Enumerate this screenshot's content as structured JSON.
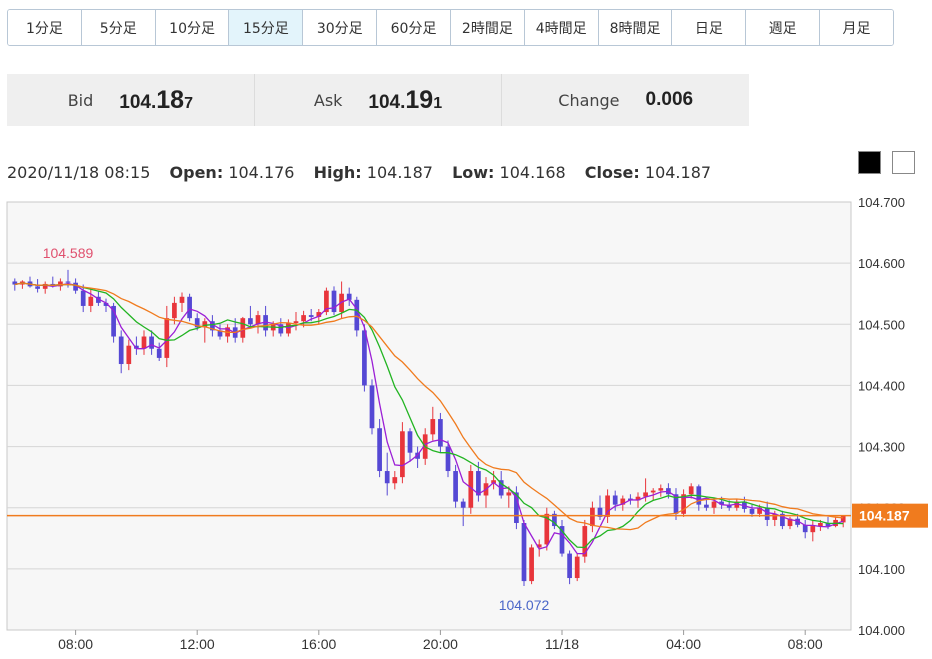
{
  "timeframes": [
    "1分足",
    "5分足",
    "10分足",
    "15分足",
    "30分足",
    "60分足",
    "2時間足",
    "4時間足",
    "8時間足",
    "日足",
    "週足",
    "月足"
  ],
  "active_timeframe": "15分足",
  "quote": {
    "bid_label": "Bid",
    "bid_main": "104.",
    "bid_big": "18",
    "bid_small": "7",
    "ask_label": "Ask",
    "ask_main": "104.",
    "ask_big": "19",
    "ask_small": "1",
    "change_label": "Change",
    "change_value": "0.006"
  },
  "ohlc": {
    "datetime": "2020/11/18 08:15",
    "open_label": "Open:",
    "open": "104.176",
    "high_label": "High:",
    "high": "104.187",
    "low_label": "Low:",
    "low": "104.168",
    "close_label": "Close:",
    "close": "104.187"
  },
  "colors": {
    "up": "#e8353b",
    "down": "#5548d4",
    "ma_fast": "#9b1fd6",
    "ma_mid": "#22b422",
    "ma_slow": "#f07b1e",
    "price_line": "#f07b1e",
    "high_label": "#e0506e",
    "low_label": "#4a66c8"
  },
  "chart_data": {
    "type": "candlestick",
    "ylim": [
      104.0,
      104.7
    ],
    "y_ticks": [
      "104.700",
      "104.600",
      "104.500",
      "104.400",
      "104.300",
      "104.200",
      "104.100",
      "104.000"
    ],
    "x_tick_labels": [
      "08:00",
      "12:00",
      "16:00",
      "20:00",
      "11/18",
      "04:00",
      "08:00"
    ],
    "x_tick_index": [
      8,
      24,
      40,
      56,
      72,
      88,
      104
    ],
    "current_price": "104.187",
    "high_annotation": "104.589",
    "high_annotation_index": 7,
    "low_annotation": "104.072",
    "low_annotation_index": 67,
    "candles": [
      [
        104.57,
        104.575,
        104.555,
        104.565
      ],
      [
        104.565,
        104.572,
        104.558,
        104.57
      ],
      [
        104.57,
        104.578,
        104.56,
        104.562
      ],
      [
        104.562,
        104.574,
        104.552,
        104.558
      ],
      [
        104.558,
        104.57,
        104.55,
        104.566
      ],
      [
        104.566,
        104.578,
        104.56,
        104.562
      ],
      [
        104.562,
        104.575,
        104.555,
        104.57
      ],
      [
        104.57,
        104.589,
        104.56,
        104.568
      ],
      [
        104.568,
        104.575,
        104.55,
        104.555
      ],
      [
        104.555,
        104.565,
        104.52,
        104.53
      ],
      [
        104.53,
        104.56,
        104.52,
        104.545
      ],
      [
        104.545,
        104.555,
        104.53,
        104.535
      ],
      [
        104.535,
        104.542,
        104.52,
        104.53
      ],
      [
        104.53,
        104.535,
        104.47,
        104.48
      ],
      [
        104.48,
        104.49,
        104.42,
        104.435
      ],
      [
        104.435,
        104.475,
        104.425,
        104.465
      ],
      [
        104.465,
        104.48,
        104.45,
        104.46
      ],
      [
        104.46,
        104.49,
        104.45,
        104.48
      ],
      [
        104.48,
        104.49,
        104.45,
        104.46
      ],
      [
        104.46,
        104.47,
        104.44,
        104.445
      ],
      [
        104.445,
        104.53,
        104.43,
        104.51
      ],
      [
        104.51,
        104.545,
        104.5,
        104.535
      ],
      [
        104.535,
        104.552,
        104.52,
        104.545
      ],
      [
        104.545,
        104.55,
        104.505,
        104.51
      ],
      [
        104.51,
        104.518,
        104.49,
        104.495
      ],
      [
        104.495,
        104.51,
        104.47,
        104.505
      ],
      [
        104.505,
        104.515,
        104.48,
        104.49
      ],
      [
        104.49,
        104.5,
        104.475,
        104.48
      ],
      [
        104.48,
        104.5,
        104.47,
        104.495
      ],
      [
        104.495,
        104.51,
        104.47,
        104.478
      ],
      [
        104.478,
        104.512,
        104.47,
        104.51
      ],
      [
        104.51,
        104.53,
        104.495,
        104.5
      ],
      [
        104.5,
        104.522,
        104.485,
        104.515
      ],
      [
        104.515,
        104.53,
        104.48,
        104.49
      ],
      [
        104.49,
        104.505,
        104.48,
        104.5
      ],
      [
        104.5,
        104.51,
        104.48,
        104.485
      ],
      [
        104.485,
        104.508,
        104.48,
        104.502
      ],
      [
        104.502,
        104.52,
        104.49,
        104.505
      ],
      [
        104.505,
        104.522,
        104.495,
        104.515
      ],
      [
        104.515,
        104.525,
        104.505,
        104.512
      ],
      [
        104.512,
        104.525,
        104.5,
        104.52
      ],
      [
        104.52,
        104.56,
        104.515,
        104.555
      ],
      [
        104.555,
        104.562,
        104.515,
        104.52
      ],
      [
        104.52,
        104.57,
        104.51,
        104.55
      ],
      [
        104.55,
        104.56,
        104.53,
        104.54
      ],
      [
        104.54,
        104.545,
        104.48,
        104.49
      ],
      [
        104.49,
        104.5,
        104.39,
        104.4
      ],
      [
        104.4,
        104.41,
        104.32,
        104.33
      ],
      [
        104.33,
        104.345,
        104.25,
        104.26
      ],
      [
        104.26,
        104.29,
        104.22,
        104.24
      ],
      [
        104.24,
        104.26,
        104.23,
        104.25
      ],
      [
        104.25,
        104.34,
        104.24,
        104.325
      ],
      [
        104.325,
        104.33,
        104.275,
        104.29
      ],
      [
        104.29,
        104.3,
        104.265,
        104.28
      ],
      [
        104.28,
        104.33,
        104.27,
        104.32
      ],
      [
        104.32,
        104.365,
        104.31,
        104.345
      ],
      [
        104.345,
        104.355,
        104.29,
        104.3
      ],
      [
        104.3,
        104.31,
        104.25,
        104.26
      ],
      [
        104.26,
        104.27,
        104.2,
        104.21
      ],
      [
        104.21,
        104.215,
        104.17,
        104.2
      ],
      [
        104.2,
        104.27,
        104.19,
        104.26
      ],
      [
        104.26,
        104.275,
        104.21,
        104.22
      ],
      [
        104.22,
        104.25,
        104.2,
        104.24
      ],
      [
        104.24,
        104.26,
        104.23,
        104.245
      ],
      [
        104.245,
        104.26,
        104.215,
        104.22
      ],
      [
        104.22,
        104.235,
        104.2,
        104.225
      ],
      [
        104.225,
        104.235,
        104.165,
        104.175
      ],
      [
        104.175,
        104.18,
        104.072,
        104.08
      ],
      [
        104.08,
        104.14,
        104.075,
        104.135
      ],
      [
        104.135,
        104.148,
        104.12,
        104.14
      ],
      [
        104.14,
        104.2,
        104.13,
        104.19
      ],
      [
        104.19,
        104.195,
        104.165,
        104.17
      ],
      [
        104.17,
        104.18,
        104.12,
        104.125
      ],
      [
        104.125,
        104.13,
        104.075,
        104.085
      ],
      [
        104.085,
        104.125,
        104.08,
        104.12
      ],
      [
        104.12,
        104.18,
        104.11,
        104.17
      ],
      [
        104.17,
        104.21,
        104.16,
        104.2
      ],
      [
        104.2,
        104.22,
        104.18,
        104.185
      ],
      [
        104.185,
        104.23,
        104.175,
        104.22
      ],
      [
        104.22,
        104.228,
        104.195,
        104.205
      ],
      [
        104.205,
        104.22,
        104.195,
        104.215
      ],
      [
        104.215,
        104.222,
        104.205,
        104.212
      ],
      [
        104.212,
        104.225,
        104.2,
        104.218
      ],
      [
        104.218,
        104.248,
        104.21,
        104.225
      ],
      [
        104.225,
        104.232,
        104.212,
        104.228
      ],
      [
        104.228,
        104.238,
        104.218,
        104.232
      ],
      [
        104.232,
        104.24,
        104.215,
        104.222
      ],
      [
        104.222,
        104.232,
        104.18,
        104.19
      ],
      [
        104.19,
        104.23,
        104.185,
        104.222
      ],
      [
        104.222,
        104.24,
        104.215,
        104.235
      ],
      [
        104.235,
        104.238,
        104.195,
        104.205
      ],
      [
        104.205,
        104.215,
        104.195,
        104.2
      ],
      [
        104.2,
        104.215,
        104.19,
        104.21
      ],
      [
        104.21,
        104.218,
        104.198,
        104.205
      ],
      [
        104.205,
        104.212,
        104.195,
        104.2
      ],
      [
        104.2,
        104.215,
        104.195,
        104.21
      ],
      [
        104.21,
        104.218,
        104.192,
        104.198
      ],
      [
        104.198,
        104.205,
        104.185,
        104.19
      ],
      [
        104.19,
        104.205,
        104.185,
        104.2
      ],
      [
        104.2,
        104.21,
        104.17,
        104.18
      ],
      [
        104.18,
        104.195,
        104.17,
        104.19
      ],
      [
        104.19,
        104.195,
        104.165,
        104.17
      ],
      [
        104.17,
        104.185,
        104.165,
        104.182
      ],
      [
        104.182,
        104.19,
        104.168,
        104.172
      ],
      [
        104.172,
        104.18,
        104.15,
        104.16
      ],
      [
        104.16,
        104.18,
        104.145,
        104.17
      ],
      [
        104.17,
        104.18,
        104.162,
        104.175
      ],
      [
        104.175,
        104.185,
        104.165,
        104.17
      ],
      [
        104.17,
        104.185,
        104.168,
        104.18
      ],
      [
        104.176,
        104.187,
        104.168,
        104.187
      ]
    ]
  }
}
